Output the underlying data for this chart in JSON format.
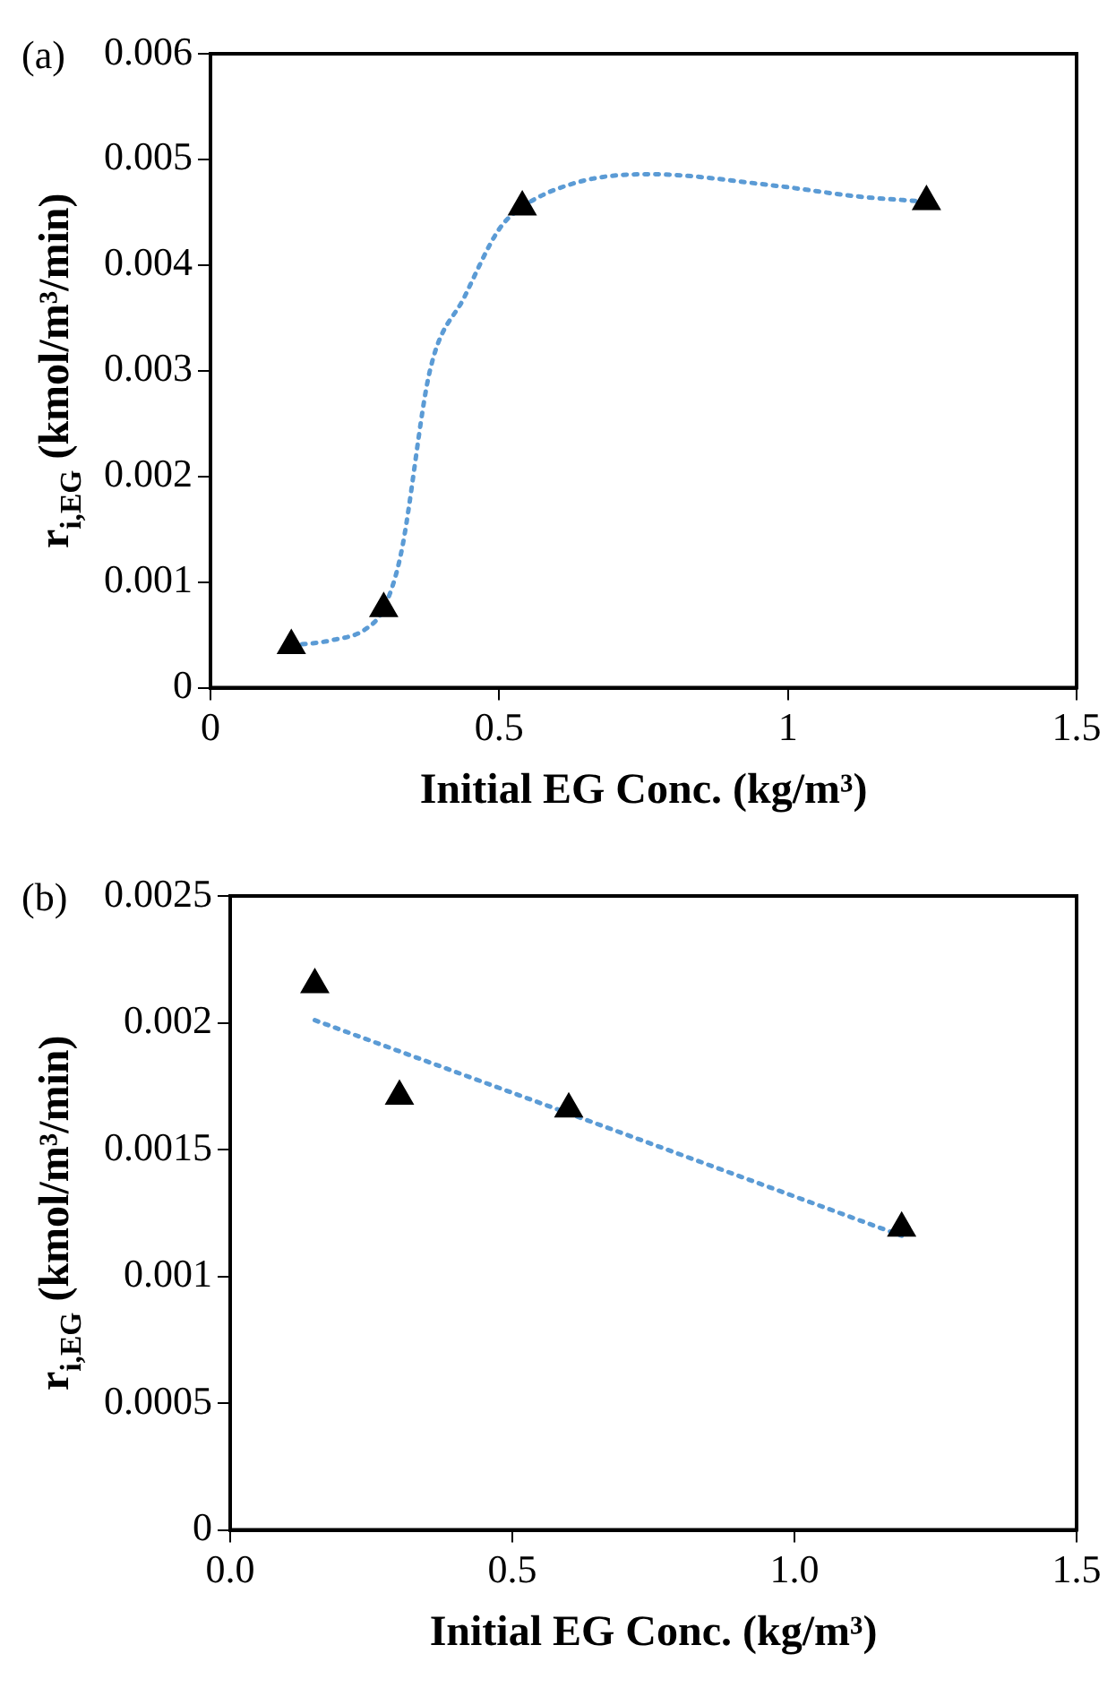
{
  "chart_data": [
    {
      "type": "scatter",
      "annotations": [
        "(a)"
      ],
      "xlabel": "Initial EG Conc. (kg/m³)",
      "ylabel": "r$_{i,EG}$ (kmol/m³/min)",
      "xlim": [
        0,
        1.5
      ],
      "xticks": [
        0,
        0.5,
        1,
        1.5
      ],
      "ylim": [
        0,
        0.006
      ],
      "yticks": [
        0,
        0.001,
        0.002,
        0.003,
        0.004,
        0.005,
        0.006
      ],
      "grid": false,
      "legend": false,
      "series": [
        {
          "type": "line",
          "color": "#5b9bd5",
          "line_style": "dotted",
          "marker": "none",
          "x": [
            0.14,
            0.21,
            0.27,
            0.3,
            0.33,
            0.38,
            0.44,
            0.5,
            0.54,
            0.64,
            0.76,
            0.98,
            1.12,
            1.24
          ],
          "values": [
            0.0004,
            0.00045,
            0.00056,
            0.00075,
            0.00127,
            0.003,
            0.0037,
            0.00434,
            0.00455,
            0.00479,
            0.00486,
            0.00475,
            0.00465,
            0.0046
          ]
        },
        {
          "type": "scatter",
          "color": "#000000",
          "marker": "triangle",
          "x": [
            0.14,
            0.3,
            0.54,
            1.24
          ],
          "values": [
            0.0004,
            0.00075,
            0.00455,
            0.0046
          ]
        }
      ]
    },
    {
      "type": "scatter",
      "annotations": [
        "(b)"
      ],
      "xlabel": "Initial EG Conc. (kg/m³)",
      "ylabel": "r$_{i,EG}$ (kmol/m³/min)",
      "xlim": [
        0,
        1.5
      ],
      "xticks": [
        {
          "value": 0,
          "label": "0.0"
        },
        {
          "value": 0.5,
          "label": "0.5"
        },
        {
          "value": 1,
          "label": "1.0"
        },
        {
          "value": 1.5,
          "label": "1.5"
        }
      ],
      "ylim": [
        0,
        0.0025
      ],
      "yticks": [
        0,
        0.0005,
        0.001,
        0.0015,
        0.002,
        0.0025
      ],
      "grid": false,
      "legend": false,
      "series": [
        {
          "type": "line",
          "color": "#5b9bd5",
          "line_style": "dotted",
          "marker": "none",
          "x": [
            0.15,
            1.19
          ],
          "values": [
            0.00201,
            0.00116
          ]
        },
        {
          "type": "scatter",
          "color": "#000000",
          "marker": "triangle",
          "x": [
            0.15,
            0.3,
            0.6,
            1.19
          ],
          "values": [
            0.00215,
            0.00171,
            0.00166,
            0.00119
          ]
        }
      ]
    }
  ]
}
